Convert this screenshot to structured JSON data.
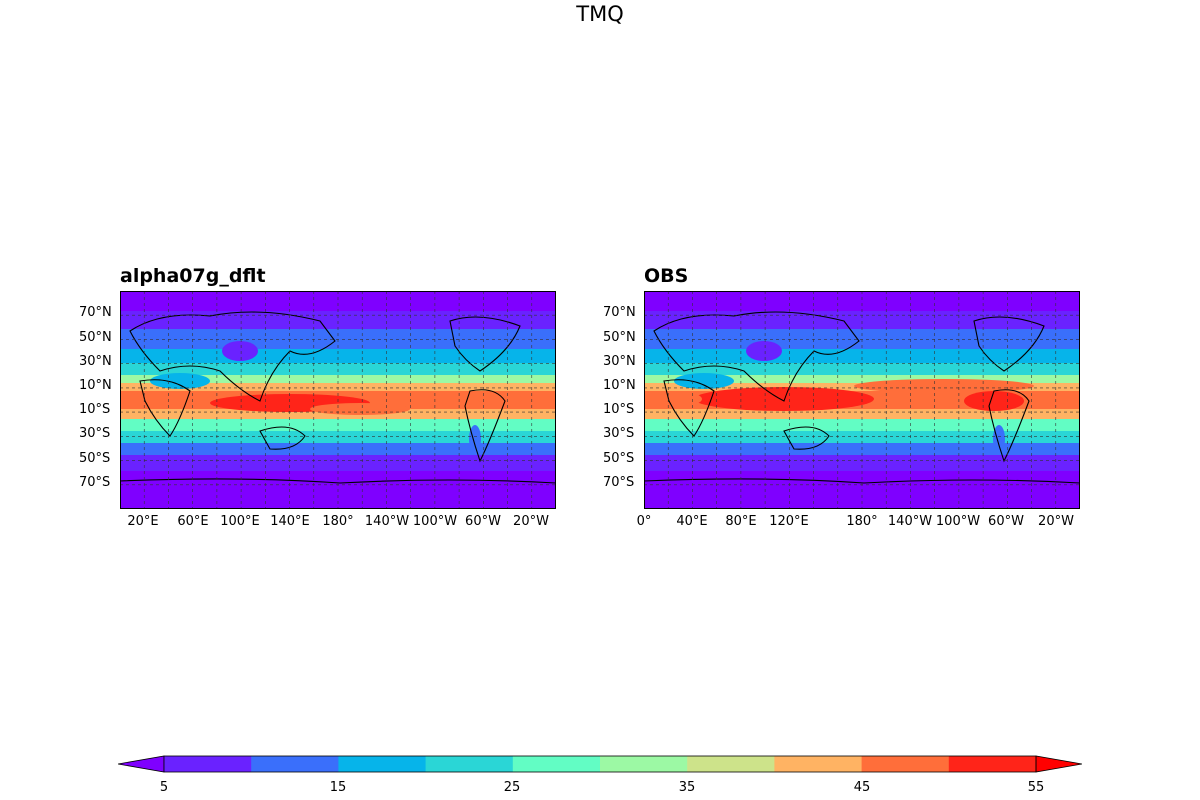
{
  "figure": {
    "title": "TMQ"
  },
  "panels": [
    {
      "title": "alpha07g_dflt",
      "lat_ticks": [
        "70°N",
        "50°N",
        "30°N",
        "10°N",
        "10°S",
        "30°S",
        "50°S",
        "70°S"
      ],
      "lon_ticks": [
        "20°E",
        "60°E",
        "100°E",
        "140°E",
        "180°",
        "140°W",
        "100°W",
        "60°W",
        "20°W"
      ]
    },
    {
      "title": "OBS",
      "lat_ticks": [
        "70°N",
        "50°N",
        "30°N",
        "10°N",
        "10°S",
        "30°S",
        "50°S",
        "70°S"
      ],
      "lon_ticks": [
        "0°",
        "40°E",
        "80°E",
        "120°E",
        "180°",
        "140°W",
        "100°W",
        "60°W",
        "20°W"
      ]
    }
  ],
  "colorbar": {
    "tick_labels": [
      "5",
      "15",
      "25",
      "35",
      "45",
      "55"
    ],
    "colors": [
      "#7f00ff",
      "#6a22ff",
      "#3a6ffb",
      "#06b4ea",
      "#2ad6d6",
      "#62fdc4",
      "#9cf9a4",
      "#cde38a",
      "#ffb363",
      "#ff6e3a",
      "#ff2419",
      "#ff0000"
    ]
  }
}
